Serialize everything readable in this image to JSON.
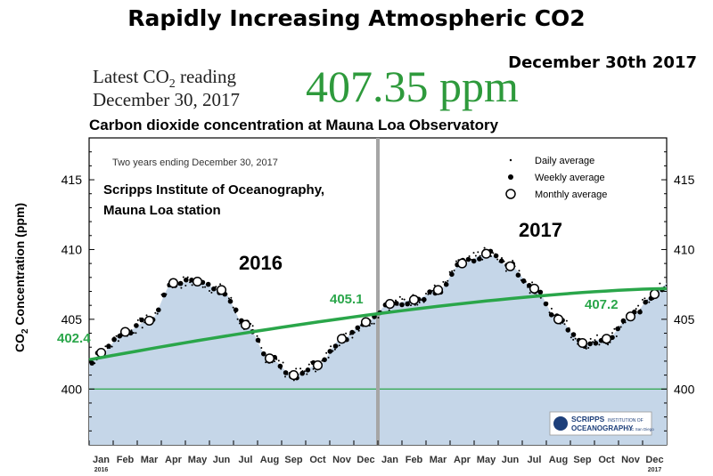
{
  "header": {
    "title": "Rapidly Increasing Atmospheric CO2",
    "date": "December 30th 2017",
    "latest_line1": "Latest CO",
    "latest_line1_sub": "2",
    "latest_line1_end": " reading",
    "latest_line2": "December 30, 2017",
    "big_value": "407.35 ppm",
    "subtitle": "Carbon dioxide concentration at Mauna Loa Observatory"
  },
  "chart_data": {
    "type": "scatter",
    "title": "Carbon dioxide concentration at Mauna Loa Observatory",
    "inner_note": "Two years ending December 30, 2017",
    "source_note_1": "Scripps Institute of Oceanography,",
    "source_note_2": "Mauna Loa station",
    "ylabel_main": "CO",
    "ylabel_sub": "2",
    "ylabel_end": " Concentration (ppm)",
    "ylim": [
      396,
      418
    ],
    "y_ticks": [
      400,
      405,
      410,
      415
    ],
    "x_ticks": [
      "Jan",
      "Feb",
      "Mar",
      "Apr",
      "May",
      "Jun",
      "Jul",
      "Aug",
      "Sep",
      "Oct",
      "Nov",
      "Dec",
      "Jan",
      "Feb",
      "Mar",
      "Apr",
      "May",
      "Jun",
      "Jul",
      "Aug",
      "Sep",
      "Oct",
      "Nov",
      "Dec"
    ],
    "year_labels": [
      {
        "text": "2016",
        "month_index": 0
      },
      {
        "text": "2017",
        "month_index": 23
      }
    ],
    "year_annotations": [
      "2016",
      "2017"
    ],
    "reference_line": 400,
    "monthly_average": {
      "name": "Monthly average",
      "months": [
        0.5,
        1.5,
        2.5,
        3.5,
        4.5,
        5.5,
        6.5,
        7.5,
        8.5,
        9.5,
        10.5,
        11.5,
        12.5,
        13.5,
        14.5,
        15.5,
        16.5,
        17.5,
        18.5,
        19.5,
        20.5,
        21.5,
        22.5,
        23.5
      ],
      "values": [
        402.6,
        404.1,
        404.9,
        407.6,
        407.7,
        407.1,
        404.6,
        402.2,
        401.0,
        401.7,
        403.6,
        404.8,
        406.1,
        406.4,
        407.1,
        409.0,
        409.7,
        408.8,
        407.2,
        405.0,
        403.3,
        403.6,
        405.2,
        406.8
      ]
    },
    "legend": [
      "Daily average",
      "Weekly average",
      "Monthly average"
    ],
    "trend_line": {
      "start": 402.1,
      "end": 407.2
    },
    "annotations": [
      "402.4",
      "405.1",
      "407.2"
    ],
    "divider_after_month": 12,
    "logo_text_1": "SCRIPPS",
    "logo_text_1b": "INSTITUTION OF",
    "logo_text_2": "OCEANOGRAPHY",
    "logo_text_2b": "UC San Diego"
  },
  "colors": {
    "fill": "#c5d6e8",
    "trend": "#2aa64a",
    "big_value": "#2e9a3c",
    "divider": "#a6a6a6"
  }
}
